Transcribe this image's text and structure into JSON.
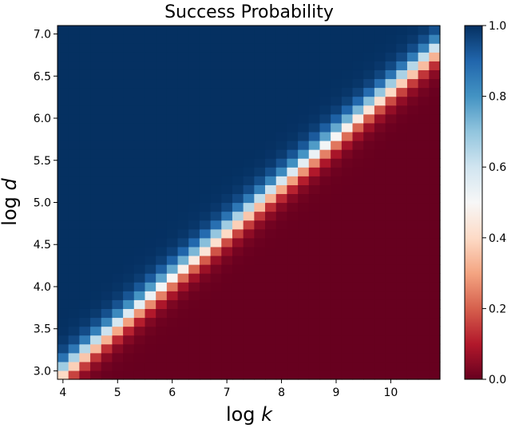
{
  "chart_data": {
    "type": "heatmap",
    "title": "Success Probability",
    "xlabel": "log k",
    "ylabel": "log d",
    "xlim": [
      3.9,
      10.9
    ],
    "ylim": [
      2.9,
      7.1
    ],
    "x_ticks": [
      "4",
      "5",
      "6",
      "7",
      "8",
      "9",
      "10"
    ],
    "y_ticks": [
      "3.0",
      "3.5",
      "4.0",
      "4.5",
      "5.0",
      "5.5",
      "6.0",
      "6.5",
      "7.0"
    ],
    "grid": false,
    "colorbar": {
      "ticks": [
        "0.0",
        "0.2",
        "0.4",
        "0.6",
        "0.8",
        "1.0"
      ],
      "range": [
        0.0,
        1.0
      ],
      "colormap": "RdBu",
      "stops": [
        "#67001f",
        "#b2182b",
        "#d6604d",
        "#f4a582",
        "#fddbc7",
        "#f7f7f7",
        "#d1e5f0",
        "#92c5de",
        "#4393c3",
        "#2166ac",
        "#053061"
      ]
    },
    "rows": 40,
    "cols": 35,
    "value_model": {
      "description": "success probability as a logistic function of log d relative to the threshold line log d = 0.56*log k + 0.75",
      "threshold_slope": 0.56,
      "threshold_intercept": 0.75,
      "transition_width": 0.09
    }
  }
}
